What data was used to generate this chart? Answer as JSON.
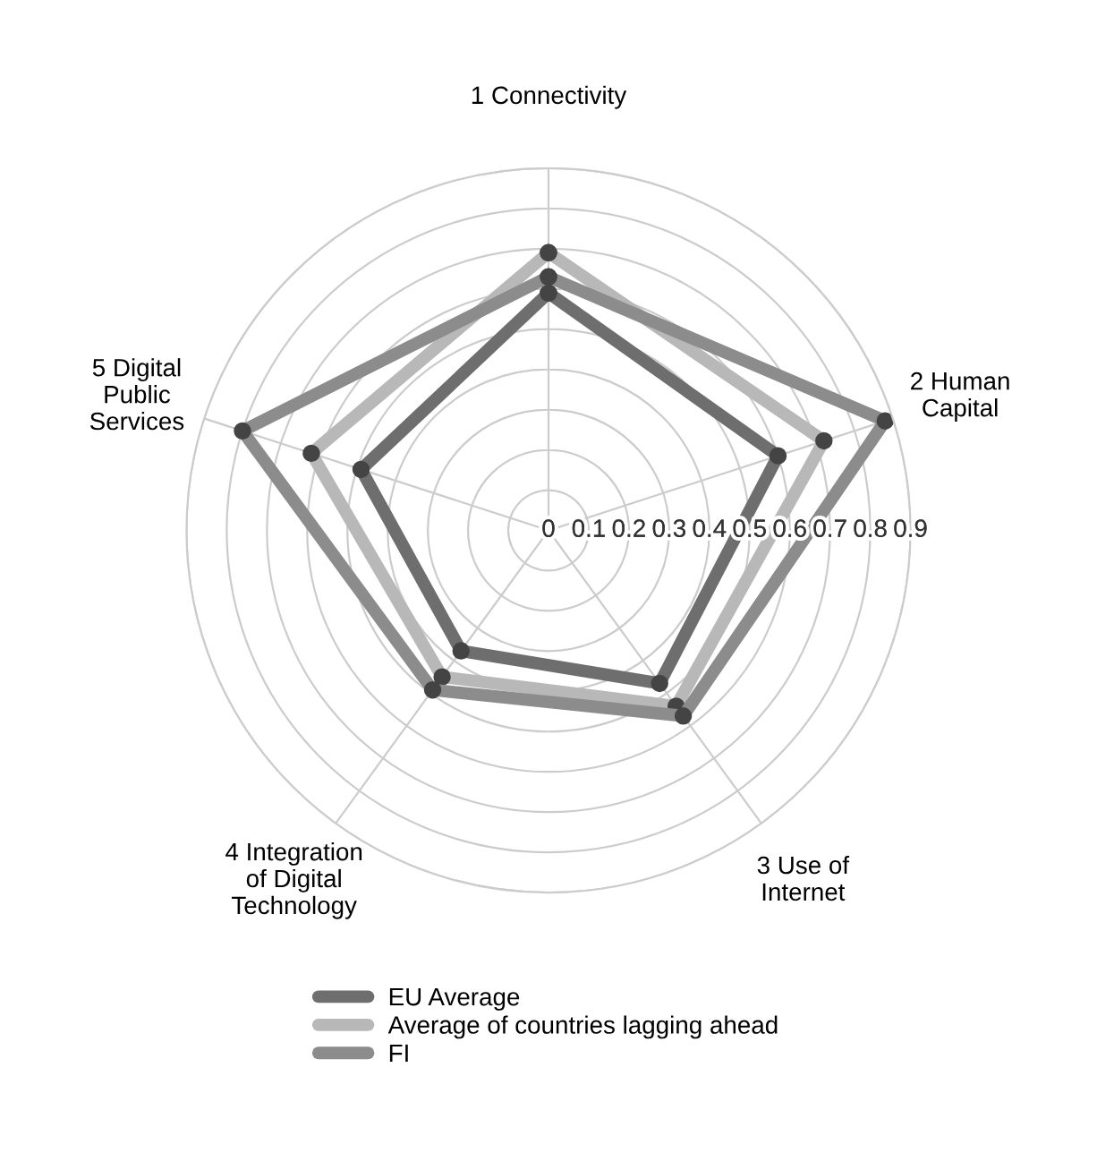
{
  "chart_data": {
    "type": "radar",
    "categories": [
      "1 Connectivity",
      "2 Human\nCapital",
      "3 Use of\nInternet",
      "4 Integration\nof Digital\nTechnology",
      "5 Digital\nPublic\nServices"
    ],
    "series": [
      {
        "name": "EU Average",
        "color": "#6e6e6e",
        "values": [
          0.59,
          0.6,
          0.47,
          0.37,
          0.49
        ]
      },
      {
        "name": "Average of countries lagging ahead",
        "color": "#b8b8b8",
        "values": [
          0.69,
          0.72,
          0.54,
          0.45,
          0.62
        ]
      },
      {
        "name": "FI",
        "color": "#8c8c8c",
        "values": [
          0.63,
          0.88,
          0.57,
          0.49,
          0.8
        ]
      }
    ],
    "ylim": [
      0,
      0.9
    ],
    "yticks": [
      0,
      0.1,
      0.2,
      0.3,
      0.4,
      0.5,
      0.6,
      0.7,
      0.8,
      0.9
    ],
    "grid": true,
    "legend": "bottom",
    "marker": "circle",
    "line_style": "solid"
  }
}
